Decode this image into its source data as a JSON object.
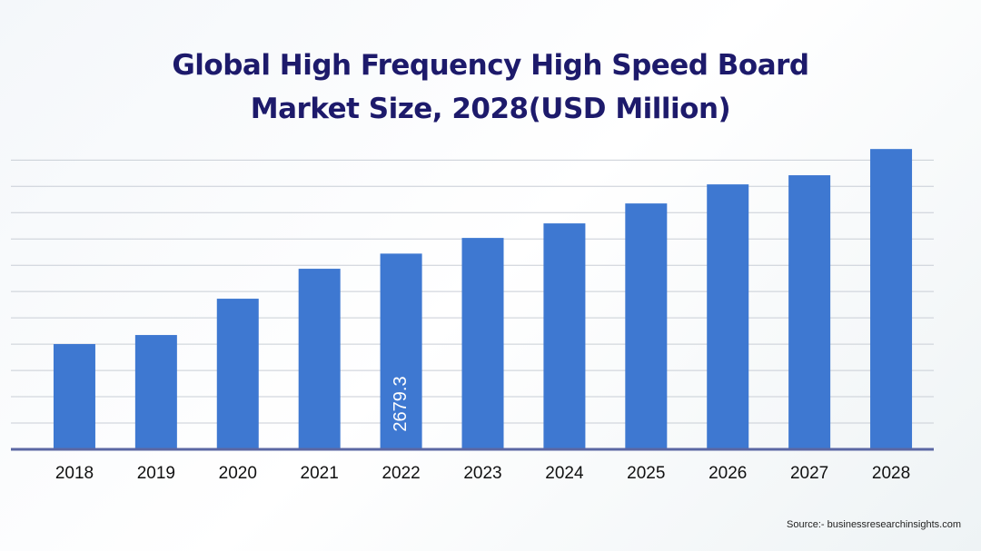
{
  "chart_data": {
    "type": "bar",
    "title": "Global High Frequency High Speed Board Market Size, 2028(USD Million)",
    "categories": [
      "2018",
      "2019",
      "2020",
      "2021",
      "2022",
      "2023",
      "2024",
      "2025",
      "2026",
      "2027",
      "2028"
    ],
    "values": [
      1441,
      1565,
      2062,
      2472,
      2679.3,
      2894,
      3093,
      3366,
      3627,
      3752,
      4111
    ],
    "value_labels": [
      null,
      null,
      null,
      null,
      "2679.3",
      null,
      null,
      null,
      null,
      null,
      null
    ],
    "color": "#3e78d1",
    "ylim": [
      0,
      4200
    ],
    "yticks": [
      360,
      720,
      1080,
      1440,
      1800,
      2160,
      2520,
      2880,
      3240,
      3600,
      3960
    ],
    "grid": true,
    "source": "Source:- businessresearchinsights.com"
  }
}
